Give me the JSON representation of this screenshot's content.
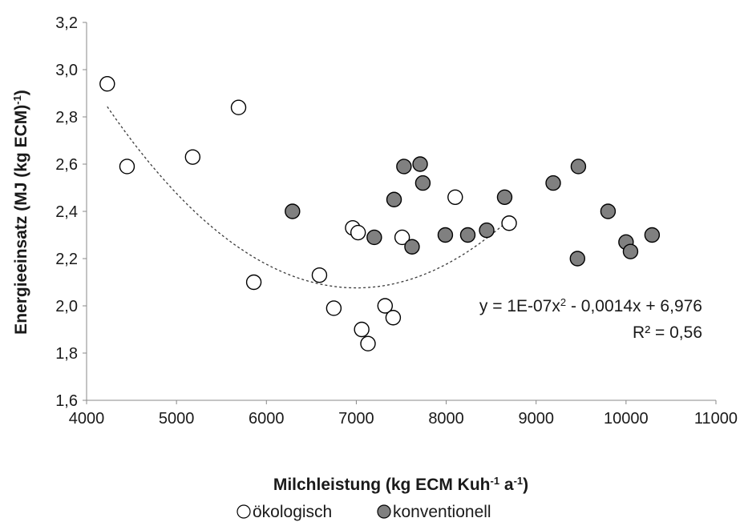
{
  "chart_data": {
    "type": "scatter",
    "xlim": [
      4000,
      11000
    ],
    "ylim": [
      1.6,
      3.2
    ],
    "x_ticks": [
      "4000",
      "5000",
      "6000",
      "7000",
      "8000",
      "9000",
      "10000",
      "11000"
    ],
    "y_ticks": [
      "1,6",
      "1,8",
      "2,0",
      "2,2",
      "2,4",
      "2,6",
      "2,8",
      "3,0",
      "3,2"
    ],
    "xlabel": {
      "main": "Milchleistung (kg ECM Kuh",
      "sup1": "-1",
      "mid": " a",
      "sup2": "-1",
      "end": ")"
    },
    "ylabel": {
      "main": "Energieeinsatz (MJ (kg ECM)",
      "sup": "-1",
      "end": ")"
    },
    "grid": false,
    "legend_position": "bottom",
    "series": [
      {
        "name": "ökologisch",
        "fill": "#ffffff",
        "stroke": "#000000",
        "points": [
          [
            4230,
            2.94
          ],
          [
            4450,
            2.59
          ],
          [
            5180,
            2.63
          ],
          [
            5690,
            2.84
          ],
          [
            5860,
            2.1
          ],
          [
            6590,
            2.13
          ],
          [
            6750,
            1.99
          ],
          [
            6960,
            2.33
          ],
          [
            7020,
            2.31
          ],
          [
            7060,
            1.9
          ],
          [
            7130,
            1.84
          ],
          [
            7320,
            2.0
          ],
          [
            7410,
            1.95
          ],
          [
            7510,
            2.29
          ],
          [
            8100,
            2.46
          ],
          [
            8700,
            2.35
          ]
        ]
      },
      {
        "name": "konventionell",
        "fill": "#808080",
        "stroke": "#000000",
        "points": [
          [
            6290,
            2.4
          ],
          [
            7200,
            2.29
          ],
          [
            7420,
            2.45
          ],
          [
            7530,
            2.59
          ],
          [
            7620,
            2.25
          ],
          [
            7710,
            2.6
          ],
          [
            7740,
            2.52
          ],
          [
            7990,
            2.3
          ],
          [
            8240,
            2.3
          ],
          [
            8450,
            2.32
          ],
          [
            8650,
            2.46
          ],
          [
            9190,
            2.52
          ],
          [
            9460,
            2.2
          ],
          [
            9470,
            2.59
          ],
          [
            9800,
            2.4
          ],
          [
            10000,
            2.27
          ],
          [
            10050,
            2.23
          ],
          [
            10290,
            2.3
          ]
        ]
      }
    ],
    "trendline": {
      "type": "polynomial",
      "coefficients": {
        "a": 1e-07,
        "b": -0.0014,
        "c": 6.976
      },
      "x_range": [
        4230,
        8700
      ],
      "style": "dashed",
      "equation_label": {
        "pre": "y = 1E-07x",
        "sup": "2",
        "post": " - 0,0014x + 6,976"
      },
      "r2_label": "R² = 0,56"
    }
  }
}
